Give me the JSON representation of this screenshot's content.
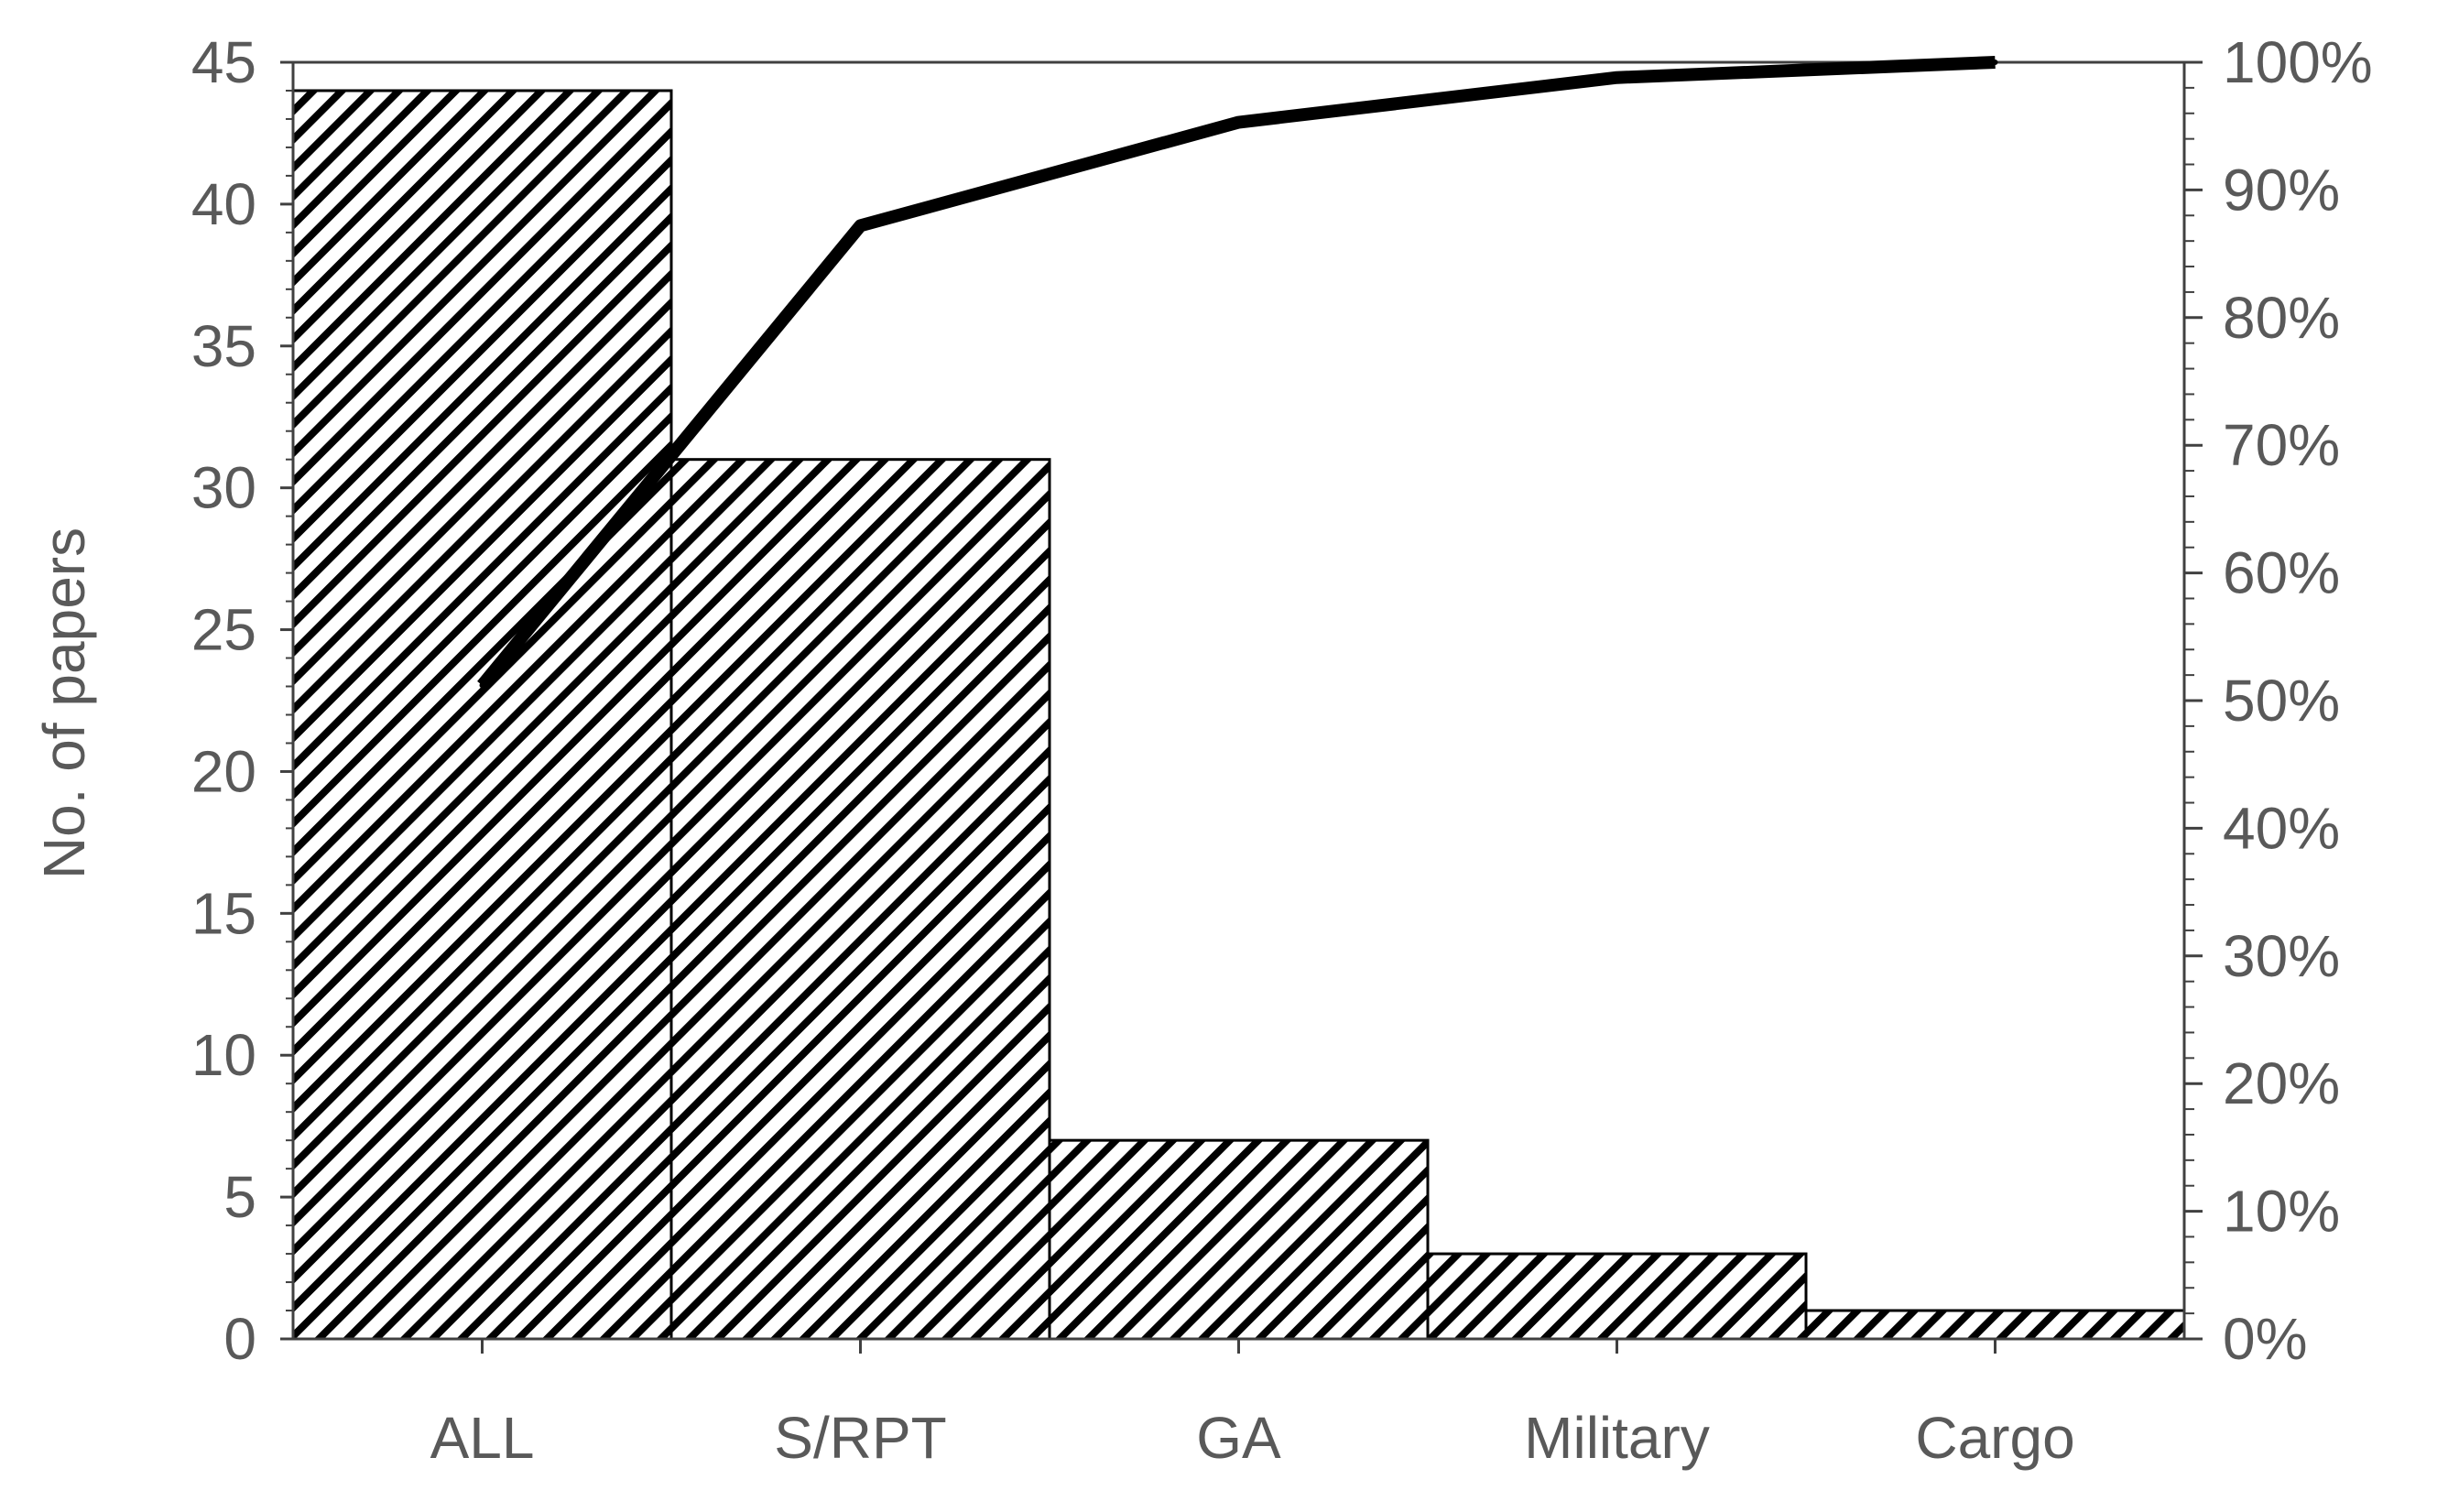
{
  "chart_data": {
    "type": "bar",
    "categories": [
      "ALL",
      "S/RPT",
      "GA",
      "Military",
      "Cargo"
    ],
    "series": [
      {
        "values": [
          44,
          31,
          7,
          3,
          1
        ]
      },
      {
        "type": "line",
        "axis": "right",
        "values": [
          51.2,
          87.2,
          95.3,
          98.8,
          100
        ]
      }
    ],
    "ylabel": "No. of papers",
    "ylim": [
      0,
      45
    ],
    "yticks": [
      "0",
      "5",
      "10",
      "15",
      "20",
      "25",
      "30",
      "35",
      "40",
      "45"
    ],
    "y2lim": [
      0,
      100
    ],
    "y2ticks": [
      "0%",
      "10%",
      "20%",
      "30%",
      "40%",
      "50%",
      "60%",
      "70%",
      "80%",
      "90%",
      "100%"
    ],
    "bar_fill": "diagonal-hatch",
    "colors": {
      "bar_stroke": "#000000",
      "line": "#000000",
      "text": "#595959",
      "axis": "#404040"
    },
    "grid": false,
    "legend": "none"
  }
}
